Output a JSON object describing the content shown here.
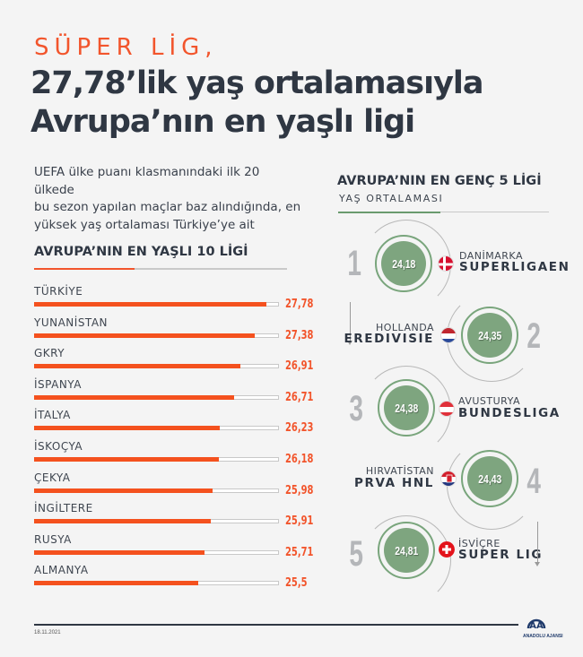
{
  "header": {
    "kicker": "SÜPER LİG,",
    "title_line1": "27,78’lik yaş ortalamasıyla",
    "title_line2": "Avrupa’nın en yaşlı ligi",
    "intro_line1": "UEFA ülke puanı klasmanındaki ilk 20 ülkede",
    "intro_line2": "bu sezon yapılan maçlar baz alındığında, en",
    "intro_line3": "yüksek yaş ortalaması Türkiye’ye ait"
  },
  "oldest": {
    "title": "AVRUPA’NIN EN YAŞLI 10 LİGİ",
    "items": [
      {
        "label": "TÜRKİYE",
        "value": "27,78"
      },
      {
        "label": "YUNANİSTAN",
        "value": "27,38"
      },
      {
        "label": "GKRY",
        "value": "26,91"
      },
      {
        "label": "İSPANYA",
        "value": "26,71"
      },
      {
        "label": "İTALYA",
        "value": "26,23"
      },
      {
        "label": "İSKOÇYA",
        "value": "26,18"
      },
      {
        "label": "ÇEKYA",
        "value": "25,98"
      },
      {
        "label": "İNGİLTERE",
        "value": "25,91"
      },
      {
        "label": "RUSYA",
        "value": "25,71"
      },
      {
        "label": "ALMANYA",
        "value": "25,5"
      }
    ]
  },
  "youngest": {
    "title": "AVRUPA’NIN EN GENÇ 5 LİGİ",
    "subtitle": "YAŞ ORTALAMASI",
    "items": [
      {
        "rank": "1",
        "value": "24,18",
        "country": "DANİMARKA",
        "league": "SUPERLIGAEN",
        "flag": "denmark-flag"
      },
      {
        "rank": "2",
        "value": "24,35",
        "country": "HOLLANDA",
        "league": "EREDIVISIE",
        "flag": "netherlands-flag"
      },
      {
        "rank": "3",
        "value": "24,38",
        "country": "AVUSTURYA",
        "league": "BUNDESLIGA",
        "flag": "austria-flag"
      },
      {
        "rank": "4",
        "value": "24,43",
        "country": "HIRVATİSTAN",
        "league": "PRVA HNL",
        "flag": "croatia-flag"
      },
      {
        "rank": "5",
        "value": "24,81",
        "country": "İSVİÇRE",
        "league": "SUPER LIG",
        "flag": "switzerland-flag"
      }
    ]
  },
  "footer": {
    "date": "18.11.2021",
    "logo_mark": "AA",
    "logo_text": "ANADOLU AJANSI"
  },
  "colors": {
    "accent_orange": "#f2552c",
    "accent_green": "#7ea57f",
    "text_dark": "#2f3743"
  },
  "chart_data": [
    {
      "type": "bar",
      "title": "AVRUPA’NIN EN YAŞLI 10 LİGİ",
      "orientation": "horizontal",
      "categories": [
        "TÜRKİYE",
        "YUNANİSTAN",
        "GKRY",
        "İSPANYA",
        "İTALYA",
        "İSKOÇYA",
        "ÇEKYA",
        "İNGİLTERE",
        "RUSYA",
        "ALMANYA"
      ],
      "values": [
        27.78,
        27.38,
        26.91,
        26.71,
        26.23,
        26.18,
        25.98,
        25.91,
        25.71,
        25.5
      ],
      "xlabel": "",
      "ylabel": "",
      "grid": false,
      "legend": null
    },
    {
      "type": "table",
      "title": "AVRUPA’NIN EN GENÇ 5 LİGİ",
      "subtitle": "YAŞ ORTALAMASI",
      "columns": [
        "rank",
        "country",
        "league",
        "average_age"
      ],
      "rows": [
        [
          1,
          "DANİMARKA",
          "SUPERLIGAEN",
          24.18
        ],
        [
          2,
          "HOLLANDA",
          "EREDIVISIE",
          24.35
        ],
        [
          3,
          "AVUSTURYA",
          "BUNDESLIGA",
          24.38
        ],
        [
          4,
          "HIRVATİSTAN",
          "PRVA HNL",
          24.43
        ],
        [
          5,
          "İSVİÇRE",
          "SUPER LIG",
          24.81
        ]
      ]
    }
  ]
}
